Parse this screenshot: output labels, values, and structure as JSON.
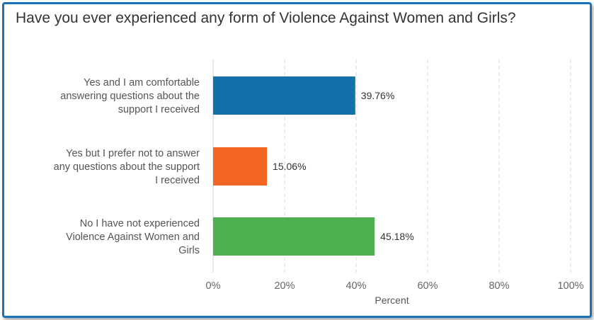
{
  "chart_data": {
    "type": "bar",
    "orientation": "horizontal",
    "title": "Have you ever experienced any form of Violence Against Women and Girls?",
    "categories": [
      [
        "Yes and I am comfortable",
        "answering questions about the",
        "support I received"
      ],
      [
        "Yes but I prefer not to answer",
        "any questions about the support",
        "I received"
      ],
      [
        "No I have not experienced",
        "Violence Against Women and",
        "Girls"
      ]
    ],
    "values": [
      39.76,
      15.06,
      45.18
    ],
    "data_labels": [
      "39.76%",
      "15.06%",
      "45.18%"
    ],
    "colors": [
      "#1270aa",
      "#f26522",
      "#4caf50"
    ],
    "xlabel": "Percent",
    "xlim": [
      0,
      100
    ],
    "xticks": [
      0,
      20,
      40,
      60,
      80,
      100
    ],
    "xtick_labels": [
      "0%",
      "20%",
      "40%",
      "60%",
      "80%",
      "100%"
    ],
    "grid": "vertical dashed",
    "legend": "none"
  }
}
